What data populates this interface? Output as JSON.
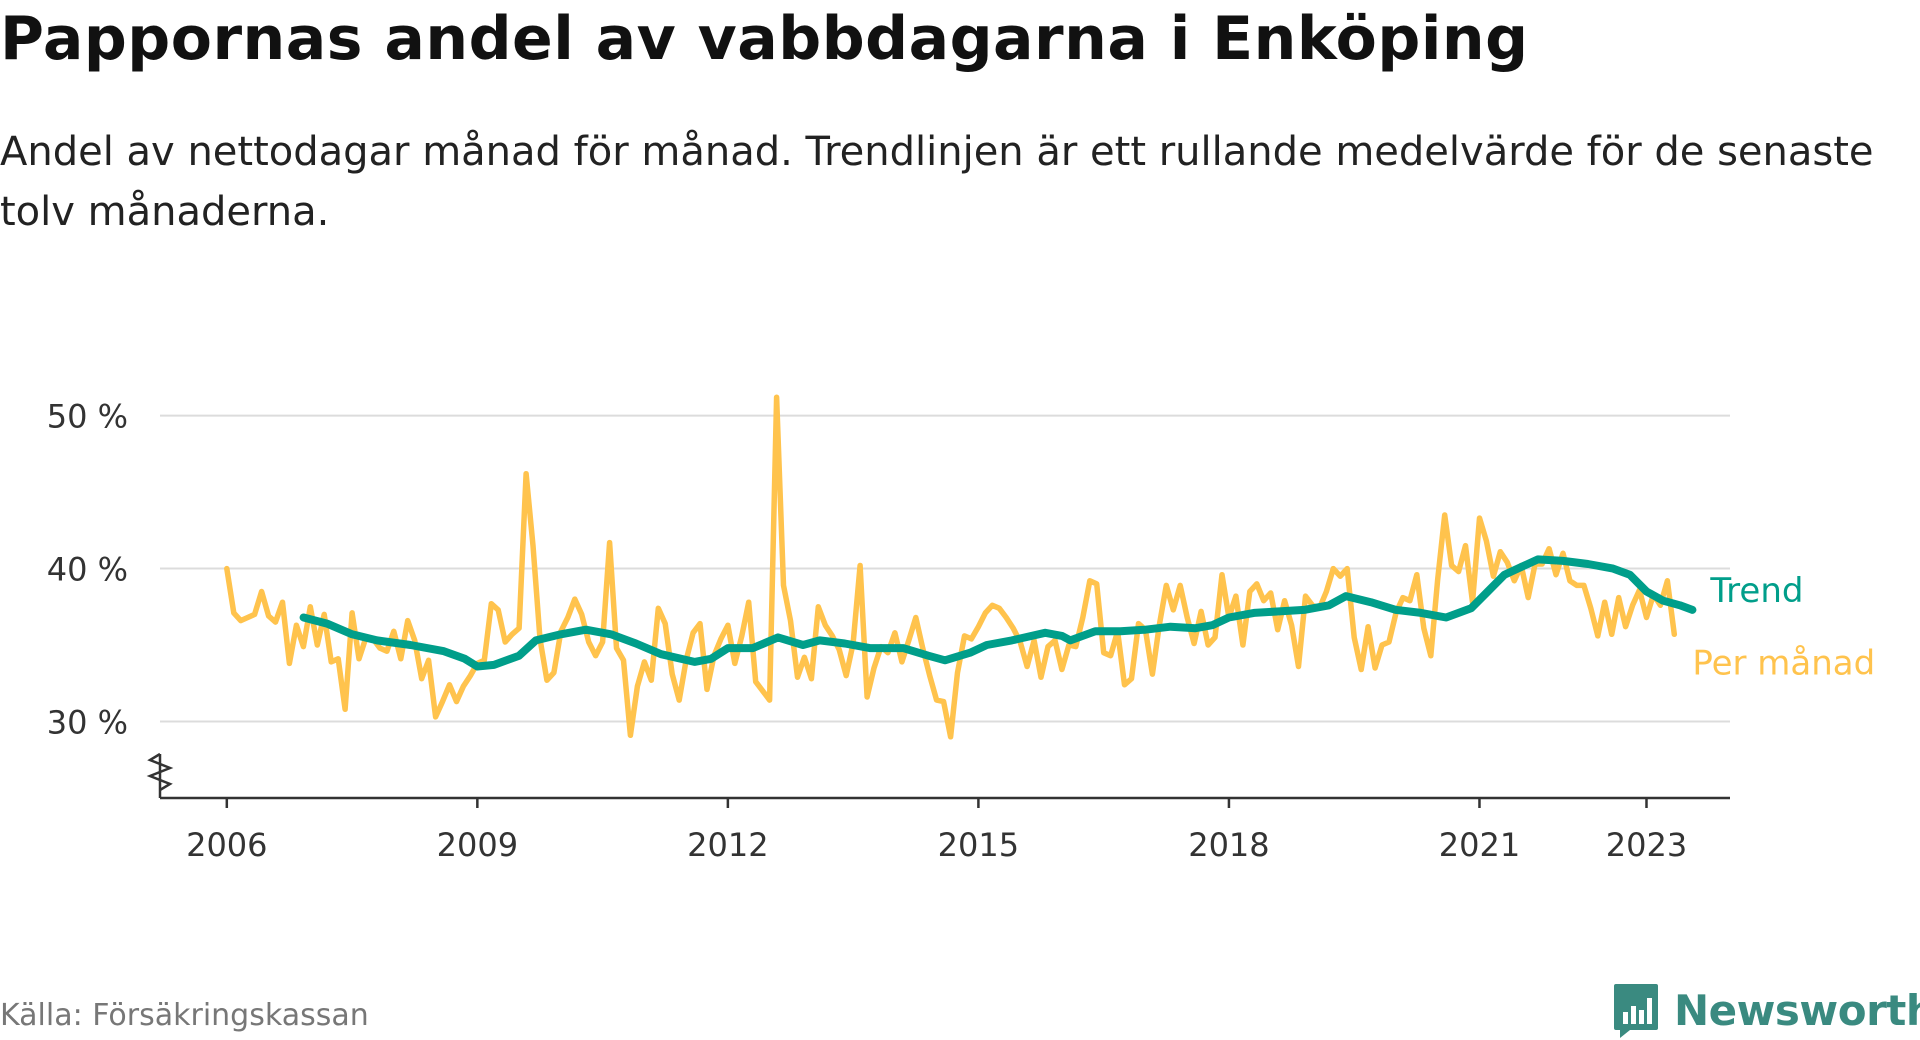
{
  "title": "Pappornas andel av vabbdagarna i Enköping",
  "subtitle": "Andel av nettodagar månad för månad. Trendlinjen är ett rullande medelvärde för de senaste tolv månaderna.",
  "source": "Källa: Försäkringskassan",
  "brand": {
    "name": "Newsworthy",
    "icon": "newsworthy-bar-chart-icon"
  },
  "colors": {
    "monthly": "#ffc34d",
    "trend": "#009e8a",
    "grid": "#dcdcdc",
    "axis": "#333333",
    "text": "#333333"
  },
  "chart_data": {
    "type": "line",
    "ylim": [
      25,
      52
    ],
    "xlim": [
      2005.2,
      2024.0
    ],
    "yticks": [
      {
        "value": 30,
        "label": "30 %"
      },
      {
        "value": 40,
        "label": "40 %"
      },
      {
        "value": 50,
        "label": "50 %"
      }
    ],
    "xticks": [
      {
        "value": 2006,
        "label": "2006"
      },
      {
        "value": 2009,
        "label": "2009"
      },
      {
        "value": 2012,
        "label": "2012"
      },
      {
        "value": 2015,
        "label": "2015"
      },
      {
        "value": 2018,
        "label": "2018"
      },
      {
        "value": 2021,
        "label": "2021"
      },
      {
        "value": 2023,
        "label": "2023"
      }
    ],
    "axis_break": true,
    "series": [
      {
        "name": "Per månad",
        "key": "monthly",
        "start": 2006.0,
        "step_months": 1,
        "values": [
          40.0,
          37.1,
          36.6,
          36.8,
          37.0,
          38.5,
          36.9,
          36.5,
          37.8,
          33.8,
          36.3,
          34.9,
          37.5,
          35.0,
          37.0,
          33.9,
          34.1,
          30.8,
          37.1,
          34.1,
          35.5,
          35.4,
          34.8,
          34.6,
          35.9,
          34.1,
          36.6,
          35.3,
          32.8,
          34.0,
          30.3,
          31.3,
          32.4,
          31.3,
          32.3,
          33.0,
          33.8,
          34.0,
          37.7,
          37.3,
          35.2,
          35.7,
          36.1,
          46.2,
          41.5,
          35.4,
          32.7,
          33.2,
          35.9,
          36.8,
          38.0,
          37.0,
          35.2,
          34.3,
          35.2,
          41.7,
          34.8,
          34.0,
          29.1,
          32.3,
          33.9,
          32.7,
          37.4,
          36.4,
          33.1,
          31.4,
          34.0,
          35.8,
          36.4,
          32.1,
          34.3,
          35.4,
          36.3,
          33.8,
          35.6,
          37.8,
          32.6,
          32.0,
          31.4,
          51.2,
          38.9,
          36.6,
          32.9,
          34.2,
          32.8,
          37.5,
          36.3,
          35.6,
          34.7,
          33.0,
          35.1,
          40.2,
          31.6,
          33.5,
          34.9,
          34.5,
          35.8,
          33.9,
          35.3,
          36.8,
          34.8,
          33.0,
          31.4,
          31.3,
          29.0,
          33.2,
          35.6,
          35.4,
          36.2,
          37.1,
          37.6,
          37.4,
          36.8,
          36.1,
          35.2,
          33.6,
          35.3,
          32.9,
          34.9,
          35.3,
          33.4,
          35.0,
          34.9,
          36.8,
          39.2,
          39.0,
          34.5,
          34.3,
          35.9,
          32.4,
          32.8,
          36.4,
          36.0,
          33.1,
          36.3,
          38.9,
          37.3,
          38.9,
          36.8,
          35.1,
          37.2,
          35.0,
          35.5,
          39.6,
          36.8,
          38.2,
          35.0,
          38.5,
          39.0,
          37.9,
          38.4,
          36.0,
          37.9,
          36.3,
          33.6,
          38.2,
          37.6,
          37.4,
          38.5,
          40.0,
          39.5,
          40.0,
          35.5,
          33.4,
          36.2,
          33.5,
          35.0,
          35.2,
          37.1,
          38.1,
          37.9,
          39.6,
          36.1,
          34.3,
          39.3,
          43.5,
          40.2,
          39.8,
          41.5,
          37.8,
          43.3,
          41.8,
          39.5,
          41.1,
          40.4,
          39.2,
          40.2,
          38.1,
          40.3,
          40.3,
          41.3,
          39.6,
          41.0,
          39.2,
          38.9,
          38.9,
          37.4,
          35.6,
          37.8,
          35.7,
          38.1,
          36.2,
          37.6,
          38.6,
          36.8,
          38.3,
          37.6,
          39.2,
          35.7
        ]
      },
      {
        "name": "Trend",
        "key": "trend",
        "points": [
          [
            2006.92,
            36.8
          ],
          [
            2007.2,
            36.4
          ],
          [
            2007.5,
            35.7
          ],
          [
            2007.8,
            35.3
          ],
          [
            2008.2,
            35.0
          ],
          [
            2008.6,
            34.6
          ],
          [
            2008.85,
            34.1
          ],
          [
            2009.0,
            33.6
          ],
          [
            2009.2,
            33.7
          ],
          [
            2009.5,
            34.3
          ],
          [
            2009.7,
            35.3
          ],
          [
            2010.0,
            35.7
          ],
          [
            2010.3,
            36.0
          ],
          [
            2010.6,
            35.7
          ],
          [
            2010.9,
            35.1
          ],
          [
            2011.2,
            34.4
          ],
          [
            2011.6,
            33.9
          ],
          [
            2011.8,
            34.1
          ],
          [
            2012.0,
            34.8
          ],
          [
            2012.3,
            34.8
          ],
          [
            2012.6,
            35.5
          ],
          [
            2012.9,
            35.0
          ],
          [
            2013.1,
            35.3
          ],
          [
            2013.4,
            35.1
          ],
          [
            2013.7,
            34.8
          ],
          [
            2014.1,
            34.8
          ],
          [
            2014.4,
            34.3
          ],
          [
            2014.6,
            34.0
          ],
          [
            2014.9,
            34.5
          ],
          [
            2015.1,
            35.0
          ],
          [
            2015.4,
            35.3
          ],
          [
            2015.8,
            35.8
          ],
          [
            2016.0,
            35.6
          ],
          [
            2016.1,
            35.3
          ],
          [
            2016.4,
            35.9
          ],
          [
            2016.7,
            35.9
          ],
          [
            2017.0,
            36.0
          ],
          [
            2017.3,
            36.2
          ],
          [
            2017.6,
            36.1
          ],
          [
            2017.8,
            36.3
          ],
          [
            2018.0,
            36.8
          ],
          [
            2018.3,
            37.1
          ],
          [
            2018.6,
            37.2
          ],
          [
            2018.9,
            37.3
          ],
          [
            2019.2,
            37.6
          ],
          [
            2019.4,
            38.2
          ],
          [
            2019.7,
            37.8
          ],
          [
            2020.0,
            37.3
          ],
          [
            2020.3,
            37.1
          ],
          [
            2020.6,
            36.8
          ],
          [
            2020.9,
            37.4
          ],
          [
            2021.1,
            38.5
          ],
          [
            2021.3,
            39.6
          ],
          [
            2021.5,
            40.1
          ],
          [
            2021.7,
            40.6
          ],
          [
            2022.0,
            40.5
          ],
          [
            2022.3,
            40.3
          ],
          [
            2022.6,
            40.0
          ],
          [
            2022.8,
            39.6
          ],
          [
            2023.0,
            38.5
          ],
          [
            2023.2,
            37.9
          ],
          [
            2023.4,
            37.6
          ],
          [
            2023.55,
            37.3
          ]
        ]
      }
    ],
    "legend": [
      {
        "key": "trend",
        "label": "Trend"
      },
      {
        "key": "monthly",
        "label": "Per månad"
      }
    ]
  }
}
